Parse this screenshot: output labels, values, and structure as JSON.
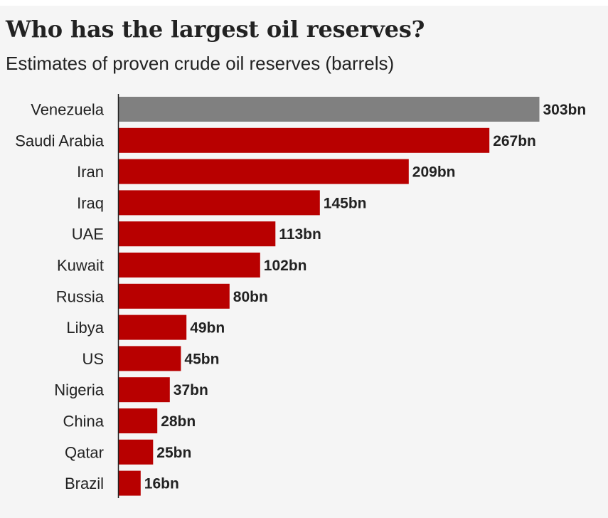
{
  "title": "Who has the largest oil reserves?",
  "subtitle": "Estimates of proven crude oil reserves (barrels)",
  "colors": {
    "highlight": "#808080",
    "bar": "#b80000",
    "axis": "#222222",
    "text": "#222222",
    "background": "#f5f5f5"
  },
  "chart_data": {
    "type": "bar",
    "orientation": "horizontal",
    "title": "Who has the largest oil reserves?",
    "subtitle": "Estimates of proven crude oil reserves (barrels)",
    "xlabel": "",
    "ylabel": "",
    "unit_suffix": "bn",
    "xlim": [
      0,
      303
    ],
    "grid": false,
    "legend": "none",
    "highlight_category": "Venezuela",
    "categories": [
      "Venezuela",
      "Saudi Arabia",
      "Iran",
      "Iraq",
      "UAE",
      "Kuwait",
      "Russia",
      "Libya",
      "US",
      "Nigeria",
      "China",
      "Qatar",
      "Brazil"
    ],
    "values": [
      303,
      267,
      209,
      145,
      113,
      102,
      80,
      49,
      45,
      37,
      28,
      25,
      16
    ],
    "value_labels": [
      "303bn",
      "267bn",
      "209bn",
      "145bn",
      "113bn",
      "102bn",
      "80bn",
      "49bn",
      "45bn",
      "37bn",
      "28bn",
      "25bn",
      "16bn"
    ]
  }
}
